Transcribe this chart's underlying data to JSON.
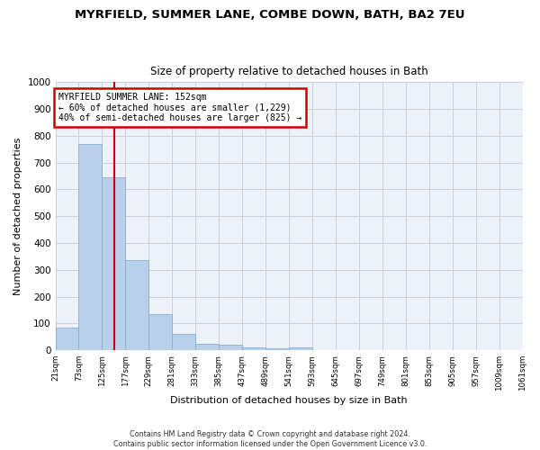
{
  "title": "MYRFIELD, SUMMER LANE, COMBE DOWN, BATH, BA2 7EU",
  "subtitle": "Size of property relative to detached houses in Bath",
  "xlabel": "Distribution of detached houses by size in Bath",
  "ylabel": "Number of detached properties",
  "bar_values": [
    85,
    770,
    645,
    335,
    135,
    60,
    25,
    20,
    10,
    8,
    10,
    0,
    0,
    0,
    0,
    0,
    0,
    0,
    0,
    0
  ],
  "bin_edges": [
    21,
    73,
    125,
    177,
    229,
    281,
    333,
    385,
    437,
    489,
    541,
    593,
    645,
    697,
    749,
    801,
    853,
    905,
    957,
    1009,
    1061
  ],
  "bar_color": "#b8d0ea",
  "bar_edge_color": "#88afd0",
  "vline_x": 152,
  "vline_color": "#cc0000",
  "annotation_title": "MYRFIELD SUMMER LANE: 152sqm",
  "annotation_line1": "← 60% of detached houses are smaller (1,229)",
  "annotation_line2": "40% of semi-detached houses are larger (825) →",
  "annotation_box_color": "#cc0000",
  "ylim": [
    0,
    1000
  ],
  "yticks": [
    0,
    100,
    200,
    300,
    400,
    500,
    600,
    700,
    800,
    900,
    1000
  ],
  "footer_line1": "Contains HM Land Registry data © Crown copyright and database right 2024.",
  "footer_line2": "Contains public sector information licensed under the Open Government Licence v3.0.",
  "bg_color": "#edf1f8",
  "grid_color": "#c8d0de",
  "fig_bg": "#ffffff"
}
